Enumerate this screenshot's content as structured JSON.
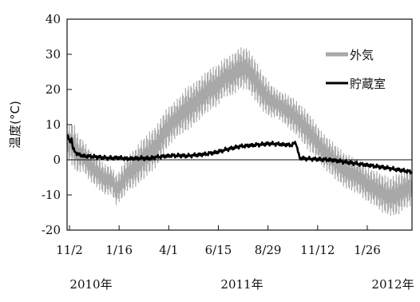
{
  "chart_data": {
    "type": "line",
    "ylabel": "温度(°C)",
    "ylim": [
      -20,
      40
    ],
    "yticks": [
      -20,
      -10,
      0,
      10,
      20,
      30,
      40
    ],
    "x_tick_labels": [
      "11/2",
      "1/16",
      "4/1",
      "6/15",
      "8/29",
      "11/12",
      "1/26"
    ],
    "year_labels": [
      "2010年",
      "2011年",
      "2012年"
    ],
    "legend_placement": "top-right",
    "zero_line": true,
    "grid": false,
    "series": [
      {
        "name": "外気",
        "color": "#a8a8a8",
        "style": "dense-band",
        "x": [
          0,
          5,
          10,
          15,
          20,
          30,
          40,
          50,
          60,
          65,
          70,
          75,
          80,
          90,
          100,
          110,
          120,
          130,
          140,
          150,
          160,
          170,
          180,
          190,
          200,
          210,
          220,
          230,
          240,
          250,
          260,
          270,
          280,
          290,
          300,
          310,
          320,
          330,
          340,
          350,
          360,
          370,
          380,
          390,
          400,
          410,
          420,
          430,
          440,
          450,
          460
        ],
        "low": [
          0,
          -1,
          -3,
          -4,
          -3,
          -6,
          -8,
          -10,
          -10,
          -13,
          -12,
          -11,
          -9,
          -8,
          -6,
          -4,
          -2,
          2,
          5,
          7,
          8,
          10,
          12,
          14,
          15,
          18,
          18,
          20,
          20,
          17,
          14,
          12,
          12,
          10,
          8,
          6,
          3,
          1,
          -2,
          -4,
          -6,
          -8,
          -9,
          -10,
          -12,
          -13,
          -15,
          -16,
          -16,
          -14,
          -13
        ],
        "high": [
          8,
          11,
          10,
          7,
          6,
          3,
          1,
          -1,
          -2,
          -4,
          -3,
          -1,
          1,
          3,
          6,
          8,
          10,
          14,
          16,
          18,
          21,
          22,
          24,
          26,
          27,
          29,
          30,
          32,
          32,
          29,
          25,
          22,
          20,
          19,
          18,
          16,
          14,
          11,
          8,
          6,
          4,
          2,
          1,
          0,
          -2,
          -3,
          -4,
          -5,
          -4,
          -3,
          -2
        ]
      },
      {
        "name": "貯蔵室",
        "color": "#000000",
        "style": "bold-line",
        "x": [
          0,
          2,
          4,
          6,
          8,
          10,
          12,
          15,
          20,
          25,
          30,
          40,
          50,
          60,
          70,
          80,
          90,
          100,
          110,
          120,
          130,
          140,
          150,
          160,
          170,
          180,
          190,
          200,
          210,
          220,
          230,
          240,
          250,
          260,
          270,
          280,
          290,
          300,
          305,
          310,
          320,
          330,
          340,
          350,
          360,
          370,
          380,
          390,
          400,
          410,
          420,
          430,
          440,
          450,
          460
        ],
        "values": [
          7,
          6,
          5,
          6,
          3,
          2.5,
          2,
          1.5,
          1.2,
          1,
          1,
          0.8,
          0.6,
          0.5,
          0.6,
          0.3,
          0.4,
          0.5,
          0.4,
          0.8,
          1,
          1.2,
          1.2,
          1.1,
          1.3,
          1.5,
          1.8,
          2.2,
          2.8,
          3.3,
          3.8,
          4.0,
          4.2,
          4.4,
          4.6,
          4.5,
          4.3,
          4.2,
          5.0,
          0.5,
          0.3,
          0.2,
          0.1,
          0.0,
          -0.3,
          -0.6,
          -0.9,
          -1.2,
          -1.5,
          -1.8,
          -2.1,
          -2.4,
          -2.8,
          -3.1,
          -3.5
        ]
      }
    ]
  }
}
